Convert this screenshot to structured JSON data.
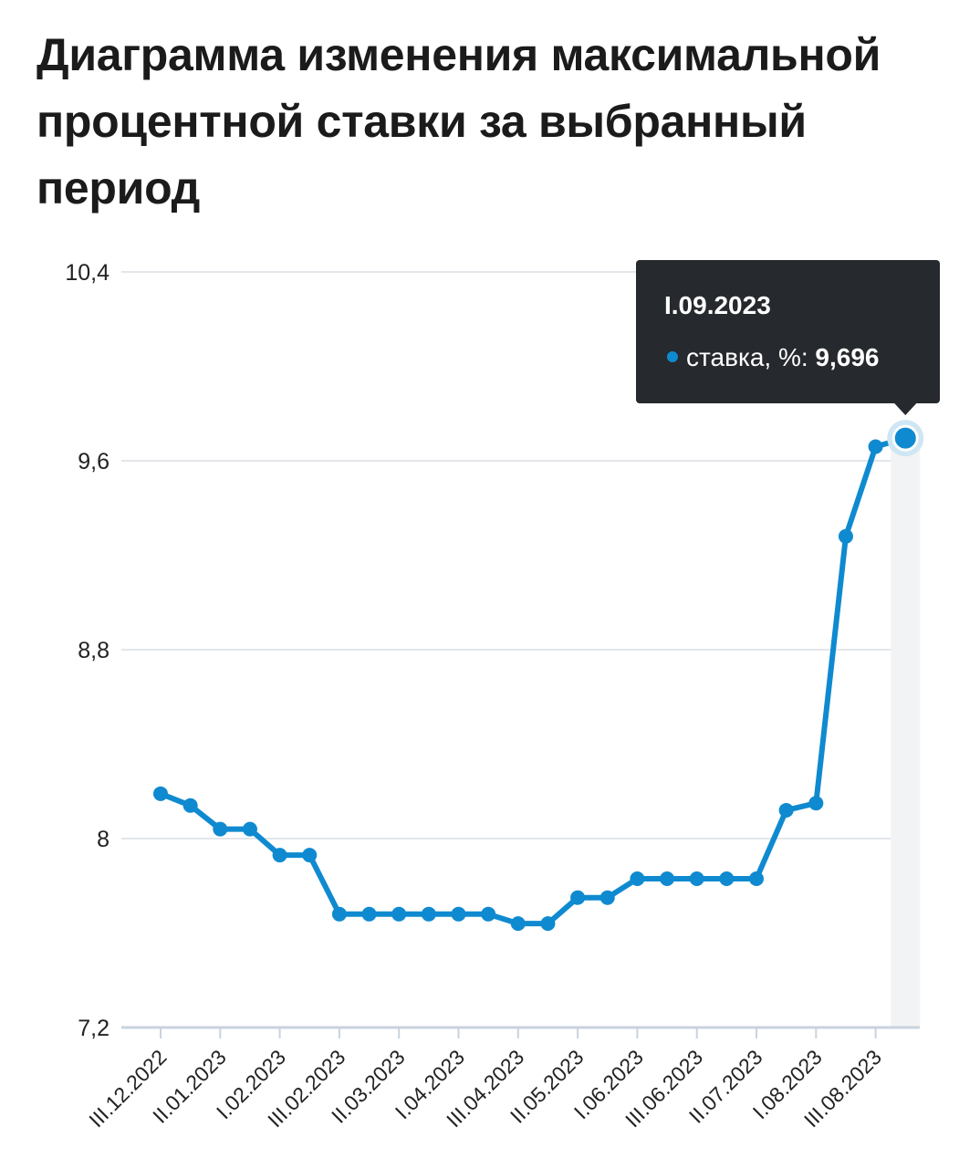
{
  "chart_data": {
    "type": "line",
    "title": "Диаграмма изменения максимальной процентной ставки за выбранный период",
    "xlabel": "",
    "ylabel": "",
    "ylim": [
      7.2,
      10.4
    ],
    "yticks": [
      "10,4",
      "9,6",
      "8,8",
      "8",
      "7,2"
    ],
    "ytick_values": [
      10.4,
      9.6,
      8.8,
      8.0,
      7.2
    ],
    "x_tick_labels": [
      "III.12.2022",
      "II.01.2023",
      "I.02.2023",
      "III.02.2023",
      "II.03.2023",
      "I.04.2023",
      "III.04.2023",
      "II.05.2023",
      "I.06.2023",
      "III.06.2023",
      "II.07.2023",
      "I.08.2023",
      "III.08.2023"
    ],
    "x_tick_indices": [
      0,
      2,
      4,
      6,
      8,
      10,
      12,
      14,
      16,
      18,
      20,
      22,
      24
    ],
    "grid": true,
    "legend": "none",
    "series": [
      {
        "name": "ставка, %",
        "color": "#0f8ad0",
        "values": [
          8.19,
          8.14,
          8.04,
          8.04,
          7.93,
          7.93,
          7.68,
          7.68,
          7.68,
          7.68,
          7.68,
          7.68,
          7.64,
          7.64,
          7.75,
          7.75,
          7.83,
          7.83,
          7.83,
          7.83,
          7.83,
          8.12,
          8.15,
          9.28,
          9.66,
          9.696
        ]
      }
    ],
    "tooltip": {
      "point_index": 25,
      "title": "I.09.2023",
      "label": "ставка, %:",
      "value": "9,696"
    }
  }
}
